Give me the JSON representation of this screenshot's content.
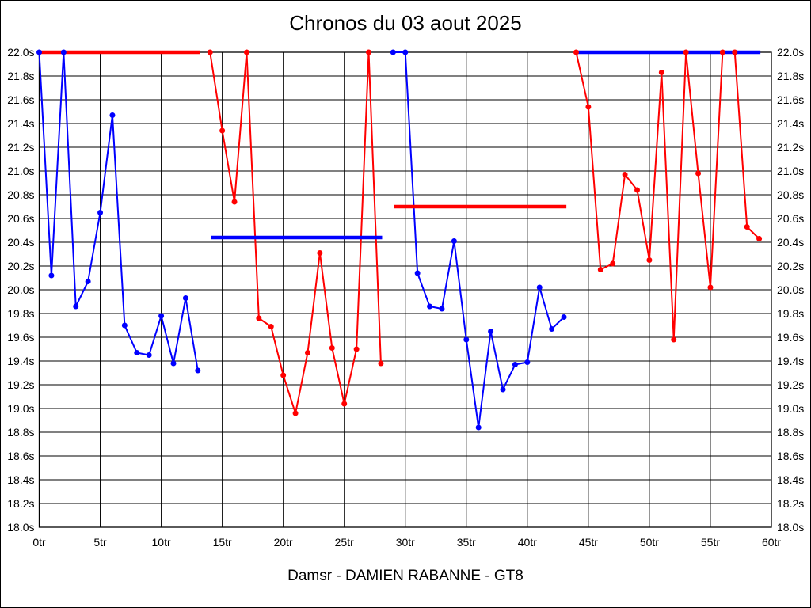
{
  "page": {
    "title": "Chronos du 03 aout 2025",
    "footer": "Damsr - DAMIEN RABANNE - GT8"
  },
  "chart_data": {
    "type": "line",
    "title": "Chronos du 03 aout 2025",
    "footer": "Damsr - DAMIEN RABANNE - GT8",
    "x_unit": "tr",
    "y_unit": "s",
    "xlim": [
      0,
      60
    ],
    "ylim": [
      18.0,
      22.0
    ],
    "x_grid_step": 5,
    "y_grid_step": 0.2,
    "grid": true,
    "legend_position": "none",
    "cap_value_seconds": 22.0,
    "x_tick_labels": [
      "0tr",
      "5tr",
      "10tr",
      "15tr",
      "20tr",
      "25tr",
      "30tr",
      "35tr",
      "40tr",
      "45tr",
      "50tr",
      "55tr",
      "60tr"
    ],
    "y_tick_labels": [
      "22.0s",
      "21.8s",
      "21.6s",
      "21.4s",
      "21.2s",
      "21.0s",
      "20.8s",
      "20.6s",
      "20.4s",
      "20.2s",
      "20.0s",
      "19.8s",
      "19.6s",
      "19.4s",
      "19.2s",
      "19.0s",
      "18.8s",
      "18.6s",
      "18.4s",
      "18.2s",
      "18.0s"
    ],
    "series": [
      {
        "name": "red-kart-laps",
        "color": "#ff0000",
        "line_width": 2,
        "segments": [
          [
            [
              14,
              22.0
            ],
            [
              15,
              21.34
            ],
            [
              16,
              20.74
            ],
            [
              17,
              22.0
            ],
            [
              18,
              19.76
            ],
            [
              19,
              19.69
            ],
            [
              20,
              19.28
            ],
            [
              21,
              18.96
            ],
            [
              22,
              19.47
            ],
            [
              23,
              20.31
            ],
            [
              24,
              19.51
            ],
            [
              25,
              19.04
            ],
            [
              26,
              19.5
            ],
            [
              27,
              22.0
            ],
            [
              28,
              19.38
            ]
          ],
          [
            [
              44,
              22.0
            ],
            [
              45,
              21.54
            ],
            [
              46,
              20.17
            ],
            [
              47,
              20.22
            ],
            [
              48,
              20.97
            ],
            [
              49,
              20.84
            ],
            [
              50,
              20.25
            ],
            [
              51,
              21.83
            ],
            [
              52,
              19.58
            ],
            [
              53,
              22.0
            ],
            [
              54,
              20.98
            ],
            [
              55,
              20.02
            ],
            [
              56,
              22.0
            ],
            [
              57,
              22.0
            ],
            [
              58,
              20.53
            ],
            [
              59,
              20.43
            ]
          ]
        ]
      },
      {
        "name": "blue-kart-laps",
        "color": "#0000ff",
        "line_width": 2,
        "segments": [
          [
            [
              0,
              22.0
            ],
            [
              1,
              20.12
            ],
            [
              2,
              22.0
            ],
            [
              3,
              19.86
            ],
            [
              4,
              20.07
            ],
            [
              5,
              20.65
            ],
            [
              6,
              21.47
            ],
            [
              7,
              19.7
            ],
            [
              8,
              19.47
            ],
            [
              9,
              19.45
            ],
            [
              10,
              19.78
            ],
            [
              11,
              19.38
            ],
            [
              12,
              19.93
            ],
            [
              13,
              19.32
            ]
          ],
          [
            [
              29,
              22.0
            ],
            [
              30,
              22.0
            ],
            [
              31,
              20.14
            ],
            [
              32,
              19.86
            ],
            [
              33,
              19.84
            ],
            [
              34,
              20.41
            ],
            [
              35,
              19.58
            ],
            [
              36,
              18.84
            ],
            [
              37,
              19.65
            ],
            [
              38,
              19.16
            ],
            [
              39,
              19.37
            ],
            [
              40,
              19.39
            ],
            [
              41,
              20.02
            ],
            [
              42,
              19.67
            ],
            [
              43,
              19.77
            ]
          ]
        ]
      }
    ],
    "mean_bars": [
      {
        "series": "red-kart-laps",
        "color": "#ff0000",
        "value": 22.0,
        "from_lap": 0,
        "to_lap": 13.2
      },
      {
        "series": "blue-kart-laps",
        "color": "#0000ff",
        "value": 20.44,
        "from_lap": 14.1,
        "to_lap": 28.1
      },
      {
        "series": "red-kart-laps",
        "color": "#ff0000",
        "value": 20.7,
        "from_lap": 29.1,
        "to_lap": 43.2
      },
      {
        "series": "blue-kart-laps",
        "color": "#0000ff",
        "value": 22.0,
        "from_lap": 44.0,
        "to_lap": 59.1
      }
    ]
  }
}
